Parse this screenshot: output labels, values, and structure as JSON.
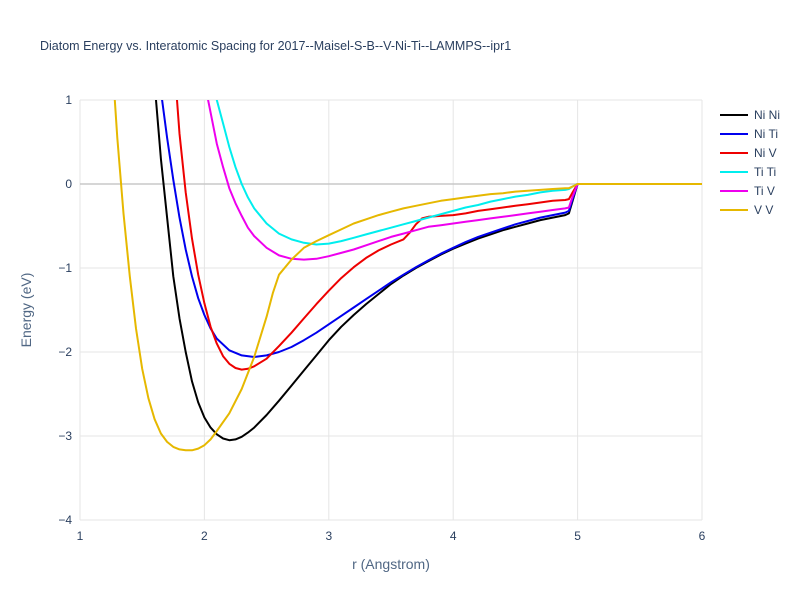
{
  "chart_data": {
    "type": "line",
    "title": "Diatom Energy vs. Interatomic Spacing for 2017--Maisel-S-B--V-Ni-Ti--LAMMPS--ipr1",
    "xlabel": "r (Angstrom)",
    "ylabel": "Energy (eV)",
    "xlim": [
      1,
      6
    ],
    "ylim": [
      -4,
      1
    ],
    "x_ticks": [
      "1",
      "2",
      "3",
      "4",
      "5",
      "6"
    ],
    "y_ticks": [
      "−4",
      "−3",
      "−2",
      "−1",
      "0",
      "1"
    ],
    "grid": true,
    "legend_position": "top-right",
    "series": [
      {
        "name": "Ni Ni",
        "color": "#000000",
        "points": [
          [
            1.6,
            1.2
          ],
          [
            1.65,
            0.3
          ],
          [
            1.7,
            -0.4
          ],
          [
            1.75,
            -1.1
          ],
          [
            1.8,
            -1.6
          ],
          [
            1.85,
            -2.0
          ],
          [
            1.9,
            -2.35
          ],
          [
            1.95,
            -2.6
          ],
          [
            2.0,
            -2.78
          ],
          [
            2.05,
            -2.9
          ],
          [
            2.1,
            -2.98
          ],
          [
            2.15,
            -3.03
          ],
          [
            2.2,
            -3.05
          ],
          [
            2.25,
            -3.04
          ],
          [
            2.3,
            -3.01
          ],
          [
            2.35,
            -2.96
          ],
          [
            2.4,
            -2.9
          ],
          [
            2.5,
            -2.75
          ],
          [
            2.6,
            -2.58
          ],
          [
            2.7,
            -2.4
          ],
          [
            2.8,
            -2.22
          ],
          [
            2.9,
            -2.04
          ],
          [
            3.0,
            -1.86
          ],
          [
            3.1,
            -1.7
          ],
          [
            3.2,
            -1.56
          ],
          [
            3.3,
            -1.43
          ],
          [
            3.4,
            -1.31
          ],
          [
            3.5,
            -1.19
          ],
          [
            3.6,
            -1.09
          ],
          [
            3.7,
            -1.0
          ],
          [
            3.8,
            -0.92
          ],
          [
            3.9,
            -0.84
          ],
          [
            4.0,
            -0.77
          ],
          [
            4.1,
            -0.71
          ],
          [
            4.2,
            -0.65
          ],
          [
            4.3,
            -0.6
          ],
          [
            4.4,
            -0.55
          ],
          [
            4.5,
            -0.51
          ],
          [
            4.6,
            -0.47
          ],
          [
            4.7,
            -0.43
          ],
          [
            4.8,
            -0.4
          ],
          [
            4.9,
            -0.37
          ],
          [
            4.93,
            -0.35
          ],
          [
            4.96,
            -0.2
          ],
          [
            5.0,
            0.0
          ],
          [
            6.0,
            0.0
          ]
        ]
      },
      {
        "name": "Ni Ti",
        "color": "#0000ee",
        "points": [
          [
            1.66,
            1.0
          ],
          [
            1.7,
            0.55
          ],
          [
            1.75,
            0.05
          ],
          [
            1.8,
            -0.4
          ],
          [
            1.85,
            -0.78
          ],
          [
            1.9,
            -1.1
          ],
          [
            1.95,
            -1.36
          ],
          [
            2.0,
            -1.56
          ],
          [
            2.05,
            -1.72
          ],
          [
            2.1,
            -1.84
          ],
          [
            2.2,
            -1.98
          ],
          [
            2.3,
            -2.04
          ],
          [
            2.4,
            -2.06
          ],
          [
            2.5,
            -2.04
          ],
          [
            2.6,
            -2.0
          ],
          [
            2.7,
            -1.94
          ],
          [
            2.8,
            -1.86
          ],
          [
            2.9,
            -1.77
          ],
          [
            3.0,
            -1.67
          ],
          [
            3.1,
            -1.57
          ],
          [
            3.2,
            -1.47
          ],
          [
            3.3,
            -1.37
          ],
          [
            3.4,
            -1.27
          ],
          [
            3.5,
            -1.17
          ],
          [
            3.6,
            -1.08
          ],
          [
            3.7,
            -0.99
          ],
          [
            3.8,
            -0.91
          ],
          [
            3.9,
            -0.83
          ],
          [
            4.0,
            -0.76
          ],
          [
            4.1,
            -0.69
          ],
          [
            4.2,
            -0.63
          ],
          [
            4.3,
            -0.58
          ],
          [
            4.4,
            -0.53
          ],
          [
            4.5,
            -0.48
          ],
          [
            4.6,
            -0.44
          ],
          [
            4.7,
            -0.4
          ],
          [
            4.8,
            -0.37
          ],
          [
            4.9,
            -0.34
          ],
          [
            4.93,
            -0.32
          ],
          [
            4.96,
            -0.18
          ],
          [
            5.0,
            0.0
          ],
          [
            6.0,
            0.0
          ]
        ]
      },
      {
        "name": "Ni V",
        "color": "#ee0000",
        "points": [
          [
            1.78,
            1.0
          ],
          [
            1.8,
            0.6
          ],
          [
            1.85,
            -0.1
          ],
          [
            1.9,
            -0.65
          ],
          [
            1.95,
            -1.08
          ],
          [
            2.0,
            -1.42
          ],
          [
            2.05,
            -1.7
          ],
          [
            2.1,
            -1.9
          ],
          [
            2.15,
            -2.05
          ],
          [
            2.2,
            -2.14
          ],
          [
            2.25,
            -2.19
          ],
          [
            2.3,
            -2.21
          ],
          [
            2.35,
            -2.2
          ],
          [
            2.4,
            -2.17
          ],
          [
            2.5,
            -2.08
          ],
          [
            2.6,
            -1.93
          ],
          [
            2.7,
            -1.77
          ],
          [
            2.8,
            -1.6
          ],
          [
            2.9,
            -1.43
          ],
          [
            3.0,
            -1.27
          ],
          [
            3.1,
            -1.12
          ],
          [
            3.2,
            -0.99
          ],
          [
            3.3,
            -0.88
          ],
          [
            3.4,
            -0.79
          ],
          [
            3.5,
            -0.72
          ],
          [
            3.6,
            -0.66
          ],
          [
            3.65,
            -0.58
          ],
          [
            3.7,
            -0.48
          ],
          [
            3.75,
            -0.41
          ],
          [
            3.8,
            -0.39
          ],
          [
            3.9,
            -0.38
          ],
          [
            4.0,
            -0.37
          ],
          [
            4.1,
            -0.35
          ],
          [
            4.2,
            -0.32
          ],
          [
            4.3,
            -0.3
          ],
          [
            4.4,
            -0.28
          ],
          [
            4.5,
            -0.26
          ],
          [
            4.6,
            -0.24
          ],
          [
            4.7,
            -0.22
          ],
          [
            4.8,
            -0.2
          ],
          [
            4.9,
            -0.19
          ],
          [
            4.93,
            -0.18
          ],
          [
            4.96,
            -0.1
          ],
          [
            5.0,
            0.0
          ],
          [
            6.0,
            0.0
          ]
        ]
      },
      {
        "name": "Ti Ti",
        "color": "#00eeee",
        "points": [
          [
            2.1,
            1.0
          ],
          [
            2.15,
            0.72
          ],
          [
            2.2,
            0.44
          ],
          [
            2.25,
            0.2
          ],
          [
            2.3,
            0.0
          ],
          [
            2.35,
            -0.16
          ],
          [
            2.4,
            -0.29
          ],
          [
            2.5,
            -0.47
          ],
          [
            2.6,
            -0.59
          ],
          [
            2.7,
            -0.66
          ],
          [
            2.8,
            -0.7
          ],
          [
            2.9,
            -0.72
          ],
          [
            3.0,
            -0.71
          ],
          [
            3.1,
            -0.68
          ],
          [
            3.2,
            -0.64
          ],
          [
            3.3,
            -0.6
          ],
          [
            3.4,
            -0.56
          ],
          [
            3.5,
            -0.52
          ],
          [
            3.6,
            -0.48
          ],
          [
            3.7,
            -0.44
          ],
          [
            3.8,
            -0.4
          ],
          [
            3.9,
            -0.36
          ],
          [
            4.0,
            -0.32
          ],
          [
            4.1,
            -0.28
          ],
          [
            4.2,
            -0.25
          ],
          [
            4.3,
            -0.21
          ],
          [
            4.4,
            -0.18
          ],
          [
            4.5,
            -0.15
          ],
          [
            4.6,
            -0.13
          ],
          [
            4.7,
            -0.1
          ],
          [
            4.8,
            -0.08
          ],
          [
            4.9,
            -0.07
          ],
          [
            4.93,
            -0.06
          ],
          [
            4.96,
            -0.03
          ],
          [
            5.0,
            0.0
          ],
          [
            6.0,
            0.0
          ]
        ]
      },
      {
        "name": "Ti V",
        "color": "#ee00ee",
        "points": [
          [
            2.03,
            1.0
          ],
          [
            2.05,
            0.85
          ],
          [
            2.1,
            0.48
          ],
          [
            2.15,
            0.2
          ],
          [
            2.2,
            -0.05
          ],
          [
            2.25,
            -0.23
          ],
          [
            2.3,
            -0.38
          ],
          [
            2.35,
            -0.52
          ],
          [
            2.4,
            -0.62
          ],
          [
            2.5,
            -0.76
          ],
          [
            2.6,
            -0.85
          ],
          [
            2.7,
            -0.89
          ],
          [
            2.8,
            -0.9
          ],
          [
            2.9,
            -0.89
          ],
          [
            3.0,
            -0.86
          ],
          [
            3.1,
            -0.82
          ],
          [
            3.2,
            -0.78
          ],
          [
            3.3,
            -0.73
          ],
          [
            3.4,
            -0.68
          ],
          [
            3.5,
            -0.63
          ],
          [
            3.6,
            -0.59
          ],
          [
            3.7,
            -0.55
          ],
          [
            3.8,
            -0.51
          ],
          [
            3.9,
            -0.49
          ],
          [
            4.0,
            -0.47
          ],
          [
            4.1,
            -0.45
          ],
          [
            4.2,
            -0.43
          ],
          [
            4.3,
            -0.41
          ],
          [
            4.4,
            -0.39
          ],
          [
            4.5,
            -0.37
          ],
          [
            4.6,
            -0.35
          ],
          [
            4.7,
            -0.33
          ],
          [
            4.8,
            -0.31
          ],
          [
            4.9,
            -0.29
          ],
          [
            4.93,
            -0.28
          ],
          [
            4.96,
            -0.15
          ],
          [
            5.0,
            0.0
          ],
          [
            6.0,
            0.0
          ]
        ]
      },
      {
        "name": "V V",
        "color": "#e6b800",
        "points": [
          [
            1.28,
            1.0
          ],
          [
            1.3,
            0.55
          ],
          [
            1.35,
            -0.35
          ],
          [
            1.4,
            -1.1
          ],
          [
            1.45,
            -1.72
          ],
          [
            1.5,
            -2.2
          ],
          [
            1.55,
            -2.55
          ],
          [
            1.6,
            -2.8
          ],
          [
            1.65,
            -2.97
          ],
          [
            1.7,
            -3.07
          ],
          [
            1.75,
            -3.13
          ],
          [
            1.8,
            -3.16
          ],
          [
            1.85,
            -3.17
          ],
          [
            1.9,
            -3.17
          ],
          [
            1.95,
            -3.15
          ],
          [
            2.0,
            -3.11
          ],
          [
            2.05,
            -3.04
          ],
          [
            2.1,
            -2.94
          ],
          [
            2.2,
            -2.73
          ],
          [
            2.3,
            -2.44
          ],
          [
            2.4,
            -2.06
          ],
          [
            2.5,
            -1.58
          ],
          [
            2.55,
            -1.3
          ],
          [
            2.6,
            -1.08
          ],
          [
            2.7,
            -0.9
          ],
          [
            2.8,
            -0.76
          ],
          [
            2.9,
            -0.68
          ],
          [
            3.0,
            -0.61
          ],
          [
            3.1,
            -0.54
          ],
          [
            3.2,
            -0.47
          ],
          [
            3.3,
            -0.42
          ],
          [
            3.4,
            -0.37
          ],
          [
            3.5,
            -0.33
          ],
          [
            3.6,
            -0.29
          ],
          [
            3.7,
            -0.26
          ],
          [
            3.8,
            -0.23
          ],
          [
            3.9,
            -0.2
          ],
          [
            4.0,
            -0.18
          ],
          [
            4.1,
            -0.16
          ],
          [
            4.2,
            -0.14
          ],
          [
            4.3,
            -0.12
          ],
          [
            4.4,
            -0.11
          ],
          [
            4.5,
            -0.09
          ],
          [
            4.6,
            -0.08
          ],
          [
            4.7,
            -0.07
          ],
          [
            4.8,
            -0.06
          ],
          [
            4.9,
            -0.05
          ],
          [
            4.93,
            -0.05
          ],
          [
            4.96,
            -0.03
          ],
          [
            5.0,
            0.0
          ],
          [
            6.0,
            0.0
          ]
        ]
      }
    ]
  }
}
